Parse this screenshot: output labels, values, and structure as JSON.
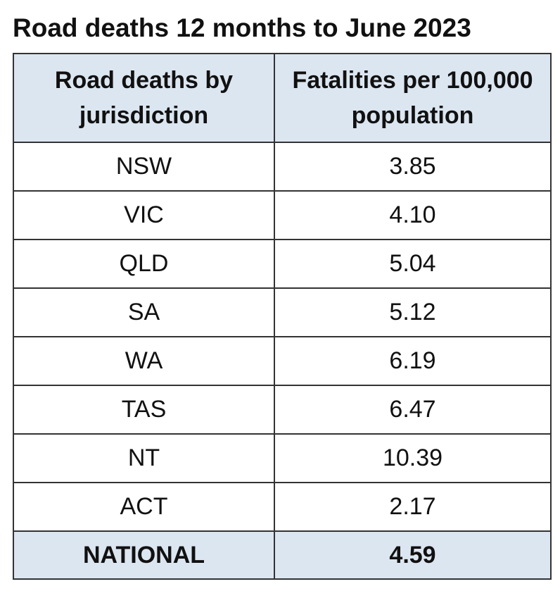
{
  "title": "Road deaths 12 months to June 2023",
  "table": {
    "header": [
      "Road deaths by jurisdiction",
      "Fatalities per 100,000 population"
    ],
    "rows": [
      [
        "NSW",
        "3.85"
      ],
      [
        "VIC",
        "4.10"
      ],
      [
        "QLD",
        "5.04"
      ],
      [
        "SA",
        "5.12"
      ],
      [
        "WA",
        "6.19"
      ],
      [
        "TAS",
        "6.47"
      ],
      [
        "NT",
        "10.39"
      ],
      [
        "ACT",
        "2.17"
      ]
    ],
    "footer": [
      "NATIONAL",
      "4.59"
    ]
  }
}
